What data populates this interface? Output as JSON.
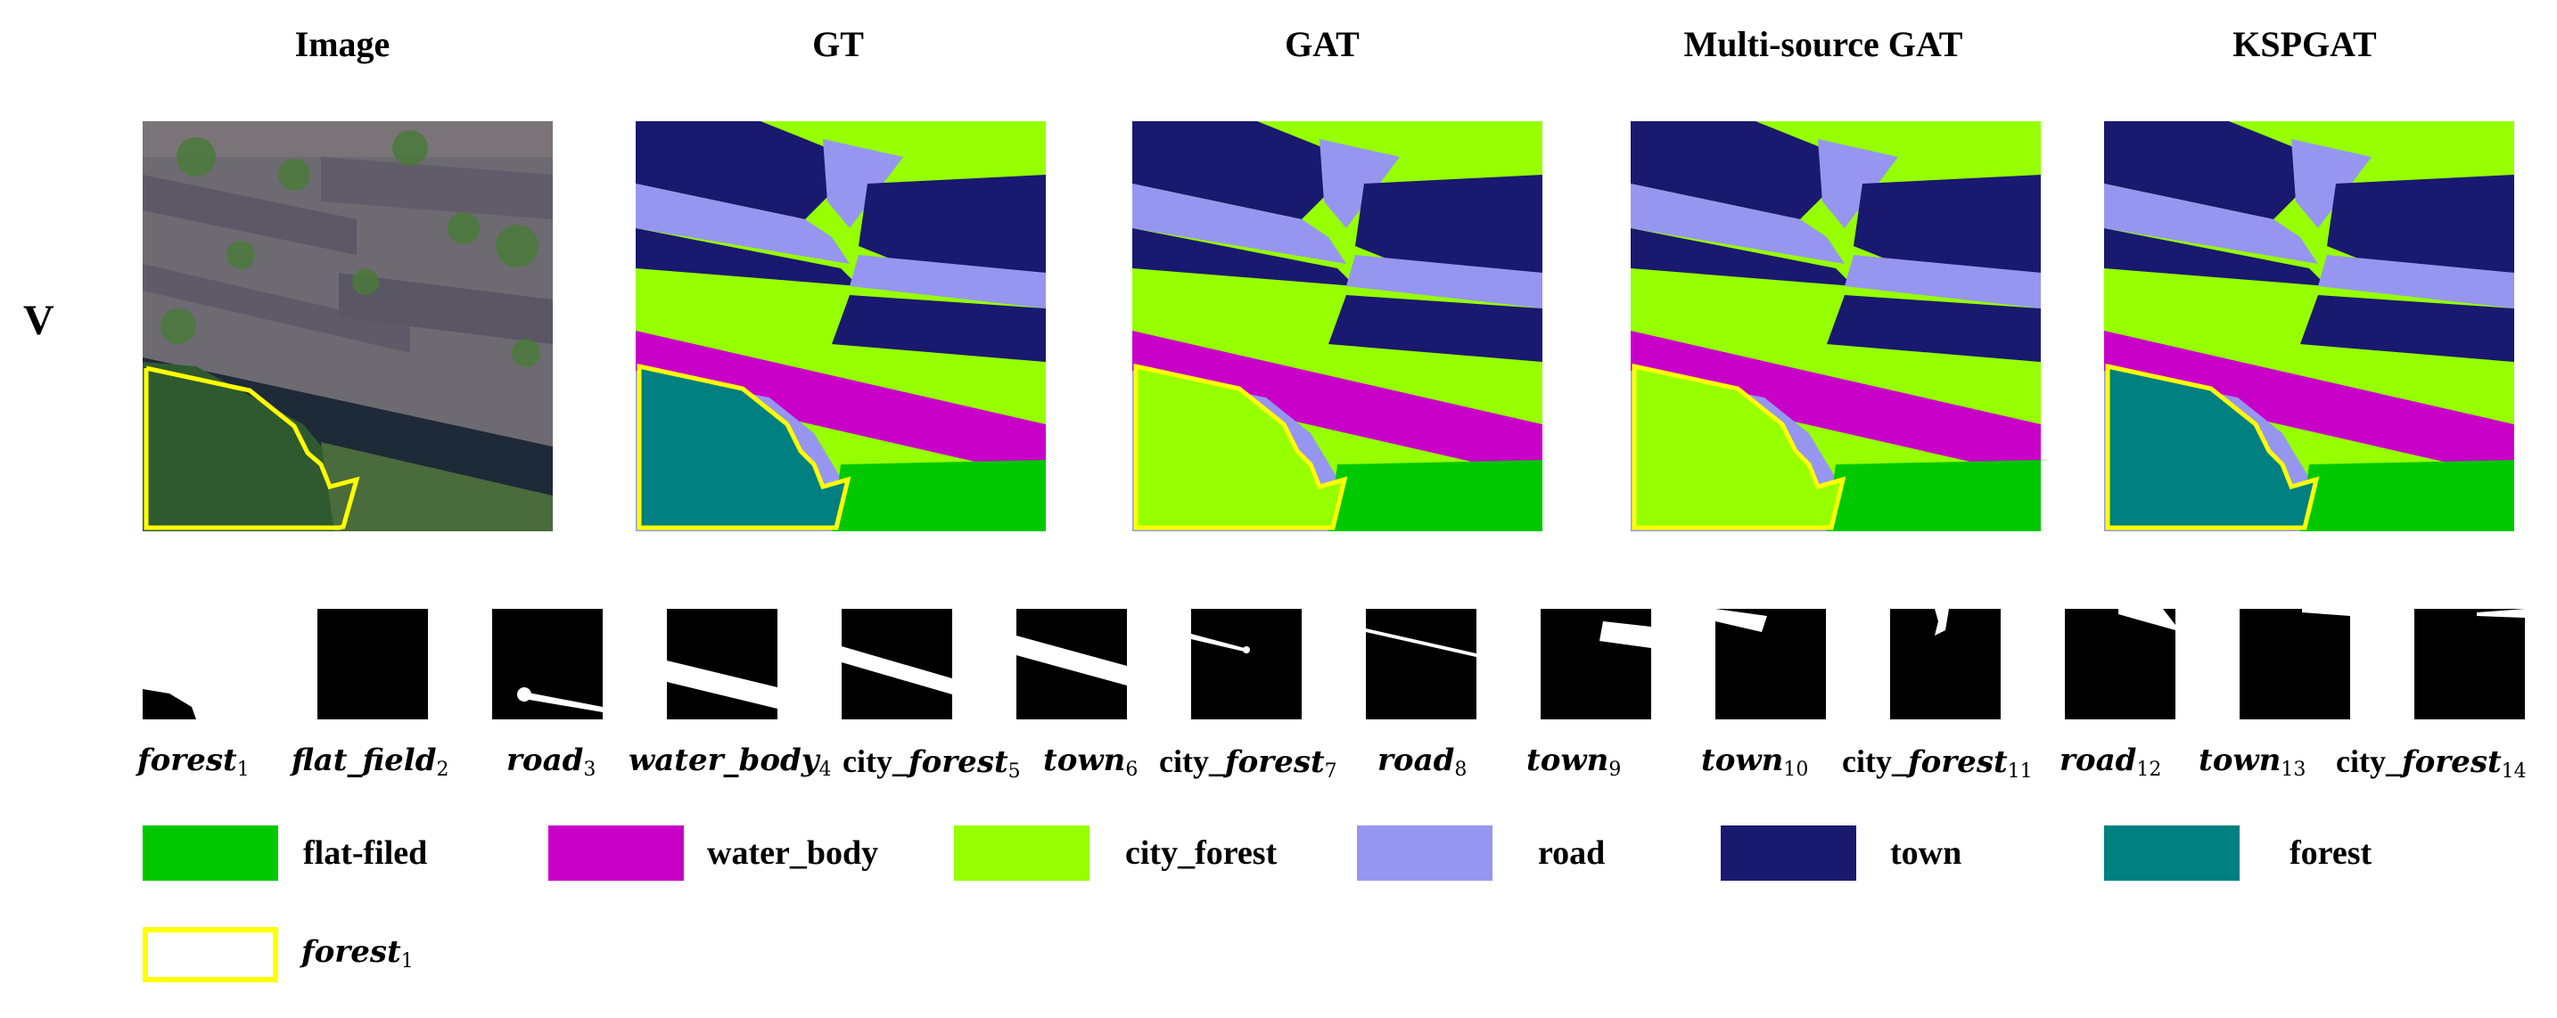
{
  "columns": {
    "image": "Image",
    "gt": "GT",
    "gat": "GAT",
    "msgat": "Multi-source GAT",
    "kspgat": "KSPGAT"
  },
  "row_label": "V",
  "colors": {
    "flat_field": "#00c800",
    "water_body": "#c800c8",
    "city_forest": "#96ff00",
    "road": "#9696f0",
    "town": "#191970",
    "forest": "#008080",
    "highlight": "#ffff00"
  },
  "masks": [
    {
      "name": "forest",
      "sub": "1"
    },
    {
      "name": "flat_field",
      "sub": "2"
    },
    {
      "name": "road",
      "sub": "3"
    },
    {
      "name": "water_body",
      "sub": "4"
    },
    {
      "prefix": "city_",
      "name": "forest",
      "sub": "5"
    },
    {
      "name": "town",
      "sub": "6"
    },
    {
      "prefix": "city_",
      "name": "forest",
      "sub": "7"
    },
    {
      "name": "road",
      "sub": "8"
    },
    {
      "name": "town",
      "sub": "9"
    },
    {
      "name": "town",
      "sub": "10"
    },
    {
      "prefix": "city_",
      "name": "forest",
      "sub": "11"
    },
    {
      "name": "road",
      "sub": "12"
    },
    {
      "name": "town",
      "sub": "13"
    },
    {
      "prefix": "city_",
      "name": "forest",
      "sub": "14"
    }
  ],
  "legend": {
    "flat_field": "flat-filed",
    "water_body": "water_body",
    "city_forest": "city_forest",
    "road": "road",
    "town": "town",
    "forest": "forest",
    "highlight_name": "forest",
    "highlight_sub": "1"
  }
}
